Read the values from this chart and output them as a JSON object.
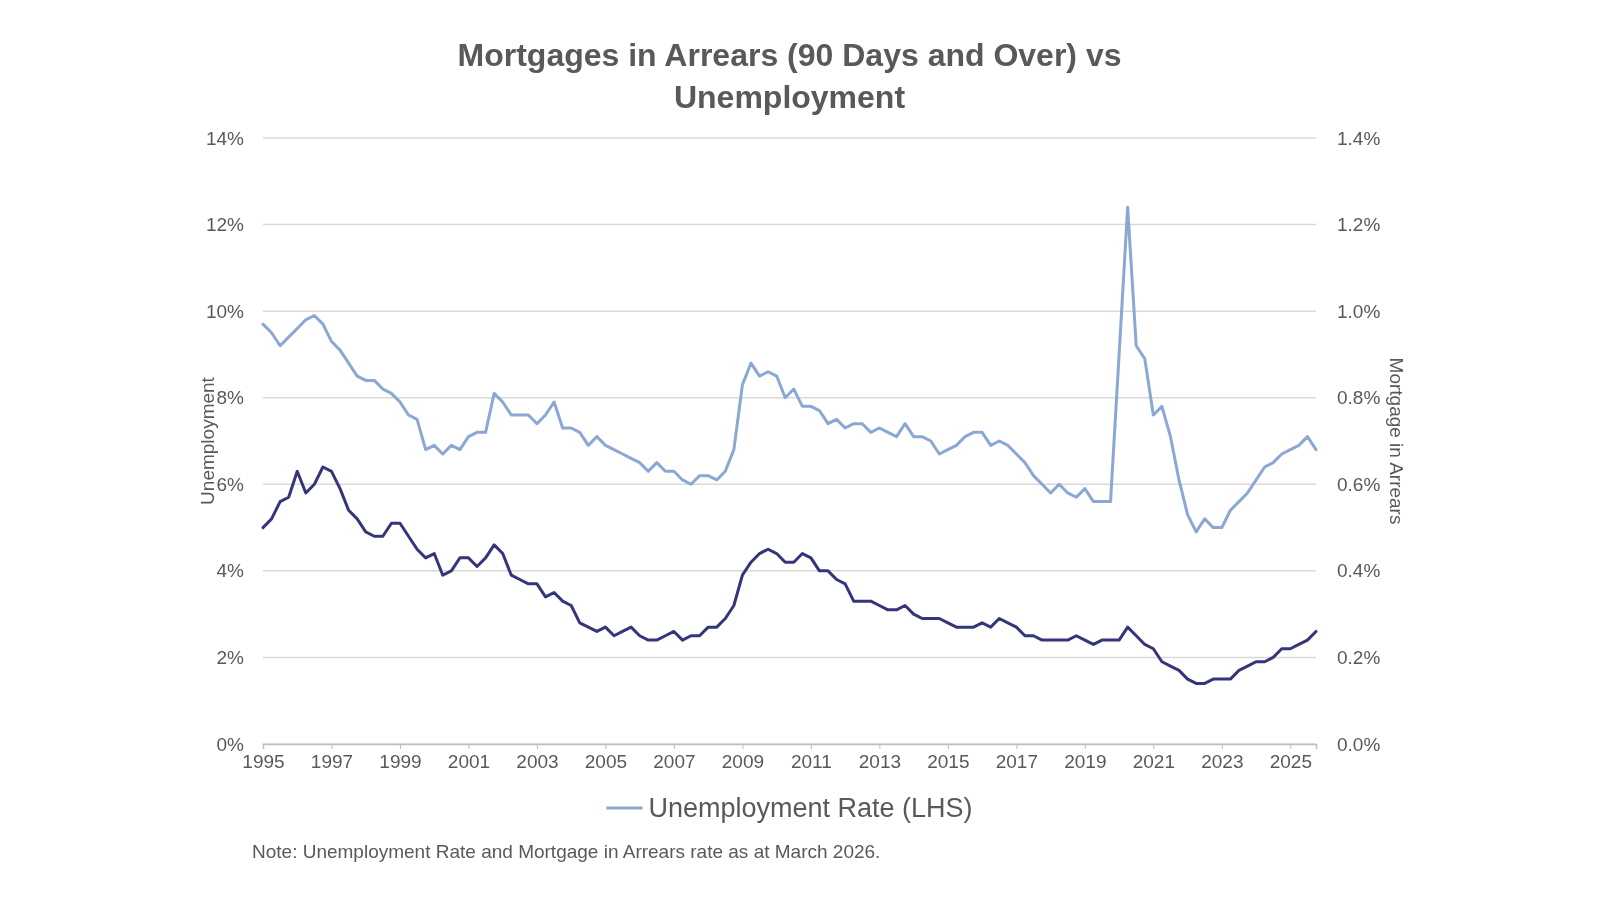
{
  "chart_data": {
    "type": "line",
    "title": "Mortgages in Arrears (90 Days and Over) vs Unemployment",
    "ylabel": "Unemployment",
    "y2label": "Mortgage in Arrears",
    "x": [
      1995,
      1995.25,
      1995.5,
      1995.75,
      1996,
      1996.25,
      1996.5,
      1996.75,
      1997,
      1997.25,
      1997.5,
      1997.75,
      1998,
      1998.25,
      1998.5,
      1998.75,
      1999,
      1999.25,
      1999.5,
      1999.75,
      2000,
      2000.25,
      2000.5,
      2000.75,
      2001,
      2001.25,
      2001.5,
      2001.75,
      2002,
      2002.25,
      2002.5,
      2002.75,
      2003,
      2003.25,
      2003.5,
      2003.75,
      2004,
      2004.25,
      2004.5,
      2004.75,
      2005,
      2005.25,
      2005.5,
      2005.75,
      2006,
      2006.25,
      2006.5,
      2006.75,
      2007,
      2007.25,
      2007.5,
      2007.75,
      2008,
      2008.25,
      2008.5,
      2008.75,
      2009,
      2009.25,
      2009.5,
      2009.75,
      2010,
      2010.25,
      2010.5,
      2010.75,
      2011,
      2011.25,
      2011.5,
      2011.75,
      2012,
      2012.25,
      2012.5,
      2012.75,
      2013,
      2013.25,
      2013.5,
      2013.75,
      2014,
      2014.25,
      2014.5,
      2014.75,
      2015,
      2015.25,
      2015.5,
      2015.75,
      2016,
      2016.25,
      2016.5,
      2016.75,
      2017,
      2017.25,
      2017.5,
      2017.75,
      2018,
      2018.25,
      2018.5,
      2018.75,
      2019,
      2019.25,
      2019.5,
      2019.75,
      2020,
      2020.25,
      2020.5,
      2020.75,
      2021,
      2021.25,
      2021.5,
      2021.75,
      2022,
      2022.25,
      2022.5,
      2022.75,
      2023,
      2023.25,
      2023.5,
      2023.75,
      2024,
      2024.25,
      2024.5,
      2024.75,
      2025,
      2025.25,
      2025.5,
      2025.75
    ],
    "series": [
      {
        "name": "Unemployment Rate (LHS)",
        "color": "#8ba7d4",
        "x": [
          1995,
          1995.25,
          1995.5,
          1995.75,
          1996,
          1996.25,
          1996.5,
          1996.75,
          1997,
          1997.25,
          1997.5,
          1997.75,
          1998,
          1998.25,
          1998.5,
          1998.75,
          1999,
          1999.25,
          1999.5,
          1999.75,
          2000,
          2000.25,
          2000.5,
          2000.75,
          2001,
          2001.25,
          2001.5,
          2001.75,
          2002,
          2002.25,
          2002.5,
          2002.75,
          2003,
          2003.25,
          2003.5,
          2003.75,
          2004,
          2004.25,
          2004.5,
          2004.75,
          2005,
          2005.25,
          2005.5,
          2005.75,
          2006,
          2006.25,
          2006.5,
          2006.75,
          2007,
          2007.25,
          2007.5,
          2007.75,
          2008,
          2008.25,
          2008.5,
          2008.75,
          2009,
          2009.25,
          2009.5,
          2009.75,
          2010,
          2010.25,
          2010.5,
          2010.75,
          2011,
          2011.25,
          2011.5,
          2011.75,
          2012,
          2012.25,
          2012.5,
          2012.75,
          2013,
          2013.25,
          2013.5,
          2013.75,
          2014,
          2014.25,
          2014.5,
          2014.75,
          2015,
          2015.25,
          2015.5,
          2015.75,
          2016,
          2016.25,
          2016.5,
          2016.75,
          2017,
          2017.25,
          2017.5,
          2017.75,
          2018,
          2018.25,
          2018.5,
          2018.75,
          2019,
          2019.25,
          2019.5,
          2019.75,
          2020.25,
          2020.5,
          2020.75,
          2021,
          2021.25,
          2021.5,
          2021.75,
          2022,
          2022.25,
          2022.5,
          2022.75,
          2023,
          2023.25,
          2023.5,
          2023.75,
          2024,
          2024.25,
          2024.5,
          2024.75,
          2025,
          2025.25,
          2025.5,
          2025.75
        ],
        "values": [
          9.7,
          9.5,
          9.2,
          9.4,
          9.6,
          9.8,
          9.9,
          9.7,
          9.3,
          9.1,
          8.8,
          8.5,
          8.4,
          8.4,
          8.2,
          8.1,
          7.9,
          7.6,
          7.5,
          6.8,
          6.9,
          6.7,
          6.9,
          6.8,
          7.1,
          7.2,
          7.2,
          8.1,
          7.9,
          7.6,
          7.6,
          7.6,
          7.4,
          7.6,
          7.9,
          7.3,
          7.3,
          7.2,
          6.9,
          7.1,
          6.9,
          6.8,
          6.7,
          6.6,
          6.5,
          6.3,
          6.5,
          6.3,
          6.3,
          6.1,
          6.0,
          6.2,
          6.2,
          6.1,
          6.3,
          6.8,
          8.3,
          8.8,
          8.5,
          8.6,
          8.5,
          8.0,
          8.2,
          7.8,
          7.8,
          7.7,
          7.4,
          7.5,
          7.3,
          7.4,
          7.4,
          7.2,
          7.3,
          7.2,
          7.1,
          7.4,
          7.1,
          7.1,
          7.0,
          6.7,
          6.8,
          6.9,
          7.1,
          7.2,
          7.2,
          6.9,
          7.0,
          6.9,
          6.7,
          6.5,
          6.2,
          6.0,
          5.8,
          6.0,
          5.8,
          5.7,
          5.9,
          5.6,
          5.6,
          5.6,
          12.4,
          9.2,
          8.9,
          7.6,
          7.8,
          7.1,
          6.1,
          5.3,
          4.9,
          5.2,
          5.0,
          5.0,
          5.4,
          5.6,
          5.8,
          6.1,
          6.4,
          6.5,
          6.7,
          6.8,
          6.9,
          7.1,
          6.8
        ]
      },
      {
        "color": "#34357a",
        "axis": "y2",
        "values": [
          0.5,
          0.52,
          0.56,
          0.57,
          0.63,
          0.58,
          0.6,
          0.64,
          0.63,
          0.59,
          0.54,
          0.52,
          0.49,
          0.48,
          0.48,
          0.51,
          0.51,
          0.48,
          0.45,
          0.43,
          0.44,
          0.39,
          0.4,
          0.43,
          0.43,
          0.41,
          0.43,
          0.46,
          0.44,
          0.39,
          0.38,
          0.37,
          0.37,
          0.34,
          0.35,
          0.33,
          0.32,
          0.28,
          0.27,
          0.26,
          0.27,
          0.25,
          0.26,
          0.27,
          0.25,
          0.24,
          0.24,
          0.25,
          0.26,
          0.24,
          0.25,
          0.25,
          0.27,
          0.27,
          0.29,
          0.32,
          0.39,
          0.42,
          0.44,
          0.45,
          0.44,
          0.42,
          0.42,
          0.44,
          0.43,
          0.4,
          0.4,
          0.38,
          0.37,
          0.33,
          0.33,
          0.33,
          0.32,
          0.31,
          0.31,
          0.32,
          0.3,
          0.29,
          0.29,
          0.29,
          0.28,
          0.27,
          0.27,
          0.27,
          0.28,
          0.27,
          0.29,
          0.28,
          0.27,
          0.25,
          0.25,
          0.24,
          0.24,
          0.24,
          0.24,
          0.25,
          0.24,
          0.23,
          0.24,
          0.24,
          0.24,
          0.27,
          0.25,
          0.23,
          0.22,
          0.19,
          0.18,
          0.17,
          0.15,
          0.14,
          0.14,
          0.15,
          0.15,
          0.15,
          0.17,
          0.18,
          0.19,
          0.19,
          0.2,
          0.22,
          0.22,
          0.23,
          0.24,
          0.26
        ]
      }
    ],
    "xlim": [
      1995,
      2025.75
    ],
    "xticks": [
      1995,
      1997,
      1999,
      2001,
      2003,
      2005,
      2007,
      2009,
      2011,
      2013,
      2015,
      2017,
      2019,
      2021,
      2023,
      2025
    ],
    "ylim": [
      0,
      14
    ],
    "yticks": [
      {
        "value": 0,
        "label": "0%"
      },
      {
        "value": 2,
        "label": "2%"
      },
      {
        "value": 4,
        "label": "4%"
      },
      {
        "value": 6,
        "label": "6%"
      },
      {
        "value": 8,
        "label": "8%"
      },
      {
        "value": 10,
        "label": "10%"
      },
      {
        "value": 12,
        "label": "12%"
      },
      {
        "value": 14,
        "label": "14%"
      }
    ],
    "y2lim": [
      0,
      1.4
    ],
    "y2ticks": [
      {
        "value": 0,
        "label": "0.0%"
      },
      {
        "value": 0.2,
        "label": "0.2%"
      },
      {
        "value": 0.4,
        "label": "0.4%"
      },
      {
        "value": 0.6,
        "label": "0.6%"
      },
      {
        "value": 0.8,
        "label": "0.8%"
      },
      {
        "value": 1.0,
        "label": "1.0%"
      },
      {
        "value": 1.2,
        "label": "1.2%"
      },
      {
        "value": 1.4,
        "label": "1.4%"
      }
    ],
    "grid": "y",
    "legend": "bottom",
    "line_style": "solid",
    "annotations": [
      "Note: Unemployment Rate and Mortgage in Arrears rate as at March 2026."
    ]
  }
}
